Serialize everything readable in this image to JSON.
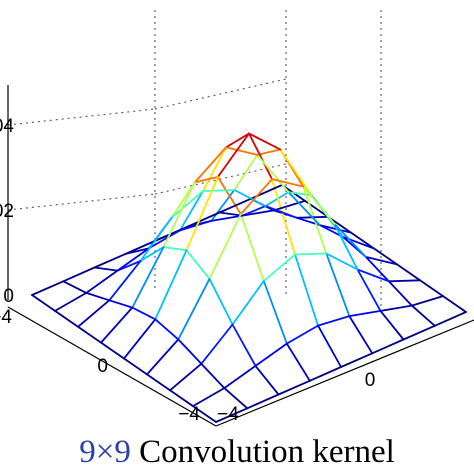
{
  "caption": {
    "size_label": "9×9",
    "title": "Convolution kernel"
  },
  "colors": {
    "axis": "#000000",
    "grid": "#555555",
    "caption_size_label": "#2a3fb0",
    "colormap": "jet"
  },
  "chart_data": {
    "type": "surface",
    "mesh": "wireframe",
    "grid": true,
    "x": [
      -4,
      -3,
      -2,
      -1,
      0,
      1,
      2,
      3,
      4
    ],
    "y": [
      -4,
      -3,
      -2,
      -1,
      0,
      1,
      2,
      3,
      4
    ],
    "z": [
      [
        0.0,
        0.0,
        0.0,
        0.0,
        0.0,
        0.0,
        0.0,
        0.0,
        0.0
      ],
      [
        0.0,
        0.001,
        0.003,
        0.005,
        0.006,
        0.005,
        0.003,
        0.001,
        0.0
      ],
      [
        0.0,
        0.003,
        0.009,
        0.016,
        0.019,
        0.016,
        0.009,
        0.003,
        0.0
      ],
      [
        0.0,
        0.005,
        0.016,
        0.028,
        0.033,
        0.028,
        0.016,
        0.005,
        0.0
      ],
      [
        0.0,
        0.006,
        0.019,
        0.033,
        0.04,
        0.033,
        0.019,
        0.006,
        0.0
      ],
      [
        0.0,
        0.005,
        0.016,
        0.028,
        0.033,
        0.028,
        0.016,
        0.005,
        0.0
      ],
      [
        0.0,
        0.003,
        0.009,
        0.016,
        0.019,
        0.016,
        0.009,
        0.003,
        0.0
      ],
      [
        0.0,
        0.001,
        0.003,
        0.005,
        0.006,
        0.005,
        0.003,
        0.001,
        0.0
      ],
      [
        0.0,
        0.0,
        0.0,
        0.0,
        0.0,
        0.0,
        0.0,
        0.0,
        0.0
      ]
    ],
    "zlim": [
      0,
      0.04
    ],
    "x_tick_labels": [
      "−4",
      "0"
    ],
    "y_tick_labels": [
      "−4",
      "0"
    ],
    "z_tick_labels": [
      "0",
      "02",
      "04"
    ],
    "z_tick_values": [
      0,
      0.02,
      0.04
    ]
  }
}
